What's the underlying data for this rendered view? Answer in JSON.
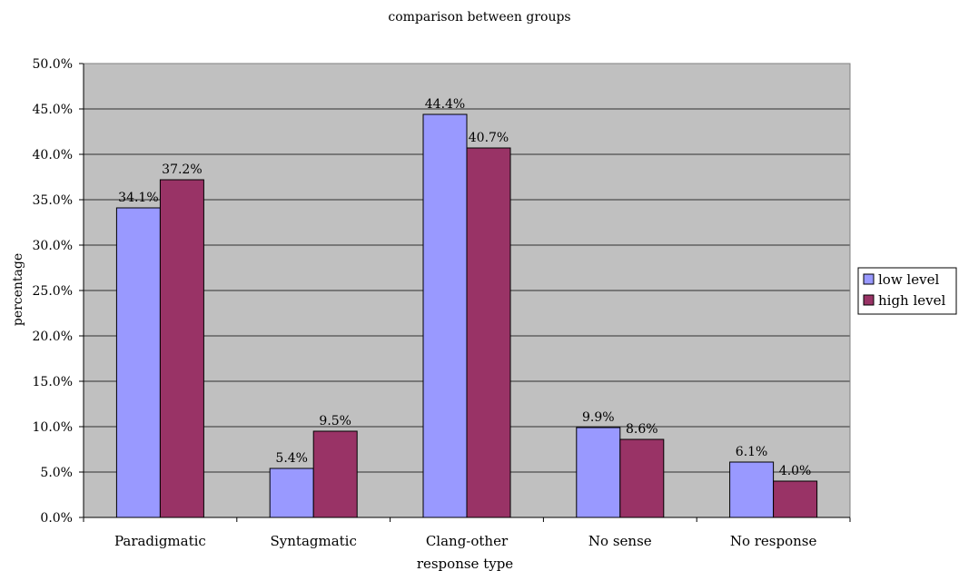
{
  "chart_data": {
    "type": "bar",
    "title": "comparison between groups",
    "xlabel": "response type",
    "ylabel": "percentage",
    "categories": [
      "Paradigmatic",
      "Syntagmatic",
      "Clang-other",
      "No sense",
      "No response"
    ],
    "series": [
      {
        "name": "low level",
        "values": [
          34.1,
          5.4,
          44.4,
          9.9,
          6.1
        ],
        "labels": [
          "34.1%",
          "5.4%",
          "44.4%",
          "9.9%",
          "6.1%"
        ],
        "color": "#9999ff"
      },
      {
        "name": "high level",
        "values": [
          37.2,
          9.5,
          40.7,
          8.6,
          4.0
        ],
        "labels": [
          "37.2%",
          "9.5%",
          "40.7%",
          "8.6%",
          "4.0%"
        ],
        "color": "#993366"
      }
    ],
    "ylim": [
      0,
      50
    ],
    "yticks": [
      0,
      5,
      10,
      15,
      20,
      25,
      30,
      35,
      40,
      45,
      50
    ],
    "ytick_labels": [
      "0.0%",
      "5.0%",
      "10.0%",
      "15.0%",
      "20.0%",
      "25.0%",
      "30.0%",
      "35.0%",
      "40.0%",
      "45.0%",
      "50.0%"
    ],
    "grid": true,
    "legend_position": "right",
    "plot_background": "#c0c0c0"
  }
}
